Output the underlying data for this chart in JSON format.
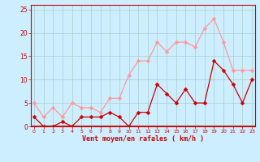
{
  "x": [
    0,
    1,
    2,
    3,
    4,
    5,
    6,
    7,
    8,
    9,
    10,
    11,
    12,
    13,
    14,
    15,
    16,
    17,
    18,
    19,
    20,
    21,
    22,
    23
  ],
  "wind_avg": [
    2,
    0,
    0,
    1,
    0,
    2,
    2,
    2,
    3,
    2,
    0,
    3,
    3,
    9,
    7,
    5,
    8,
    5,
    5,
    14,
    12,
    9,
    5,
    10
  ],
  "wind_gust": [
    5,
    2,
    4,
    2,
    5,
    4,
    4,
    3,
    6,
    6,
    11,
    14,
    14,
    18,
    16,
    18,
    18,
    17,
    21,
    23,
    18,
    12,
    12,
    12
  ],
  "xlabel": "Vent moyen/en rafales ( km/h )",
  "ylim": [
    0,
    26
  ],
  "yticks": [
    0,
    5,
    10,
    15,
    20,
    25
  ],
  "xticks": [
    0,
    1,
    2,
    3,
    4,
    5,
    6,
    7,
    8,
    9,
    10,
    11,
    12,
    13,
    14,
    15,
    16,
    17,
    18,
    19,
    20,
    21,
    22,
    23
  ],
  "avg_color": "#cc0000",
  "gust_color": "#ff9999",
  "bg_color": "#cceeff",
  "grid_color": "#aacccc",
  "label_color": "#cc0000",
  "tick_color": "#cc0000",
  "spine_color": "#cc0000",
  "axis_line_color": "#cc0000"
}
